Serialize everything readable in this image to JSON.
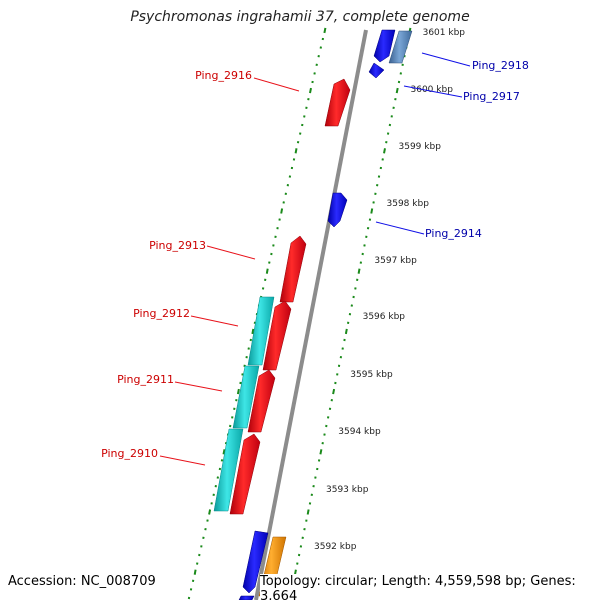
{
  "title": "Psychromonas ingrahamii 37, complete genome",
  "footer": {
    "accession": "Accession: NC_008709",
    "summary": "Topology: circular; Length: 4,559,598 bp; Genes: 3,664"
  },
  "colors": {
    "backbone": "#8c8c8c",
    "tick_dots": "#1a8a1a",
    "forward_gene": "#e8121a",
    "reverse_gene": "#1010e6",
    "cyan_feature": "#18c8c8",
    "steelblue_feature": "#4f7fb8",
    "orange_feature": "#f39010",
    "forward_label": "#cc0000",
    "reverse_label": "#0000aa"
  },
  "ruler_ticks": [
    "3592 kbp",
    "3593 kbp",
    "3594 kbp",
    "3595 kbp",
    "3596 kbp",
    "3597 kbp",
    "3598 kbp",
    "3599 kbp",
    "3600 kbp",
    "3601 kbp"
  ],
  "gene_labels": {
    "left": [
      "Ping_2916",
      "Ping_2913",
      "Ping_2912",
      "Ping_2911",
      "Ping_2910"
    ],
    "right": [
      "Ping_2918",
      "Ping_2917",
      "Ping_2914"
    ]
  }
}
